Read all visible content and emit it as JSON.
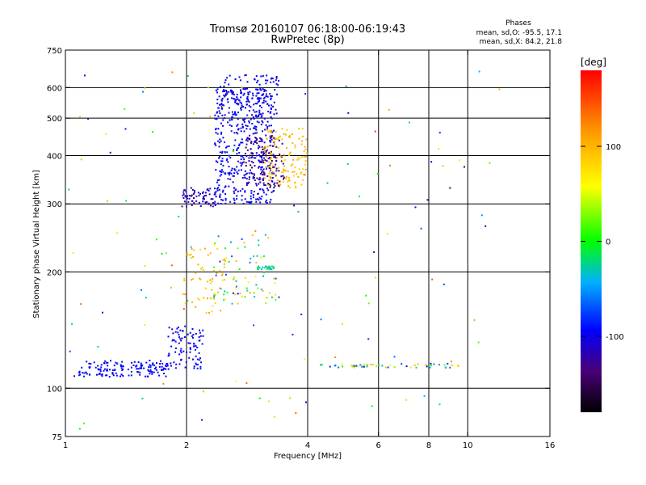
{
  "title": "Tromsø 20160107 06:18:00-06:19:43",
  "subtitle": "RwPretec (8p)",
  "stats": {
    "heading": "Phases",
    "line_o": "mean, sd,O: -95.5, 17.1",
    "line_x": "mean, sd,X:  84.2, 21.8"
  },
  "colorbar": {
    "unit": "[deg]",
    "range": [
      -180,
      180
    ],
    "ticks": [
      {
        "value": 100,
        "label": "100"
      },
      {
        "value": 0,
        "label": "0"
      },
      {
        "value": -100,
        "label": "-100"
      }
    ]
  },
  "chart_data": {
    "type": "scatter",
    "xlabel": "Frequency [MHz]",
    "ylabel": "Stationary phase Virtual Height [km]",
    "xscale": "log",
    "yscale": "log",
    "xlim": [
      1,
      16
    ],
    "ylim": [
      75,
      750
    ],
    "xticks": [
      {
        "value": 1,
        "label": "1"
      },
      {
        "value": 2,
        "label": "2"
      },
      {
        "value": 4,
        "label": "4"
      },
      {
        "value": 6,
        "label": "6"
      },
      {
        "value": 8,
        "label": "8"
      },
      {
        "value": 10,
        "label": "10"
      },
      {
        "value": 16,
        "label": "16"
      }
    ],
    "yticks": [
      {
        "value": 75,
        "label": "75"
      },
      {
        "value": 100,
        "label": "100"
      },
      {
        "value": 200,
        "label": "200"
      },
      {
        "value": 300,
        "label": "300"
      },
      {
        "value": 400,
        "label": "400"
      },
      {
        "value": 500,
        "label": "500"
      },
      {
        "value": 600,
        "label": "600"
      },
      {
        "value": 750,
        "label": "750"
      }
    ],
    "gridlines_x": [
      2,
      4,
      6,
      8,
      10
    ],
    "gridlines_y": [
      100,
      200,
      300,
      400,
      500,
      600
    ],
    "color_by": "phase (deg)",
    "clusters": [
      {
        "desc": "E trace",
        "f": [
          1.08,
          1.8
        ],
        "h": [
          107,
          118
        ],
        "phase": [
          -105,
          -85
        ],
        "n": 150
      },
      {
        "desc": "E trace rise",
        "f": [
          1.8,
          2.2
        ],
        "h": [
          112,
          145
        ],
        "phase": [
          -110,
          -85
        ],
        "n": 90
      },
      {
        "desc": "F1 base",
        "f": [
          1.95,
          2.4
        ],
        "h": [
          295,
          330
        ],
        "phase": [
          -130,
          -100
        ],
        "n": 70
      },
      {
        "desc": "F2 O-trace",
        "f": [
          2.35,
          3.3
        ],
        "h": [
          300,
          600
        ],
        "phase": [
          -110,
          -85
        ],
        "n": 520
      },
      {
        "desc": "F2 O-trace upper",
        "f": [
          2.4,
          3.4
        ],
        "h": [
          500,
          650
        ],
        "phase": [
          -105,
          -90
        ],
        "n": 90
      },
      {
        "desc": "F2 dark branch",
        "f": [
          2.8,
          3.5
        ],
        "h": [
          330,
          450
        ],
        "phase": [
          -150,
          -125
        ],
        "n": 110
      },
      {
        "desc": "F2 X-trace",
        "f": [
          3.1,
          4.0
        ],
        "h": [
          330,
          470
        ],
        "phase": [
          80,
          110
        ],
        "n": 130
      },
      {
        "desc": "F1 X mid",
        "f": [
          1.95,
          2.5
        ],
        "h": [
          155,
          230
        ],
        "phase": [
          75,
          115
        ],
        "n": 60
      },
      {
        "desc": "mid scatter",
        "f": [
          2.3,
          3.4
        ],
        "h": [
          165,
          250
        ],
        "phase": [
          -80,
          110
        ],
        "n": 80
      },
      {
        "desc": "horizontal band",
        "f": [
          3.0,
          3.3
        ],
        "h": [
          203,
          207
        ],
        "phase": [
          -40,
          -10
        ],
        "n": 25
      },
      {
        "desc": "interference line",
        "f": [
          4.3,
          9.5
        ],
        "h": [
          113,
          116
        ],
        "phase": [
          -100,
          100
        ],
        "n": 55
      },
      {
        "desc": "noise",
        "f": [
          1.0,
          12.0
        ],
        "h": [
          78,
          680
        ],
        "phase": [
          -140,
          160
        ],
        "n": 120
      }
    ]
  }
}
